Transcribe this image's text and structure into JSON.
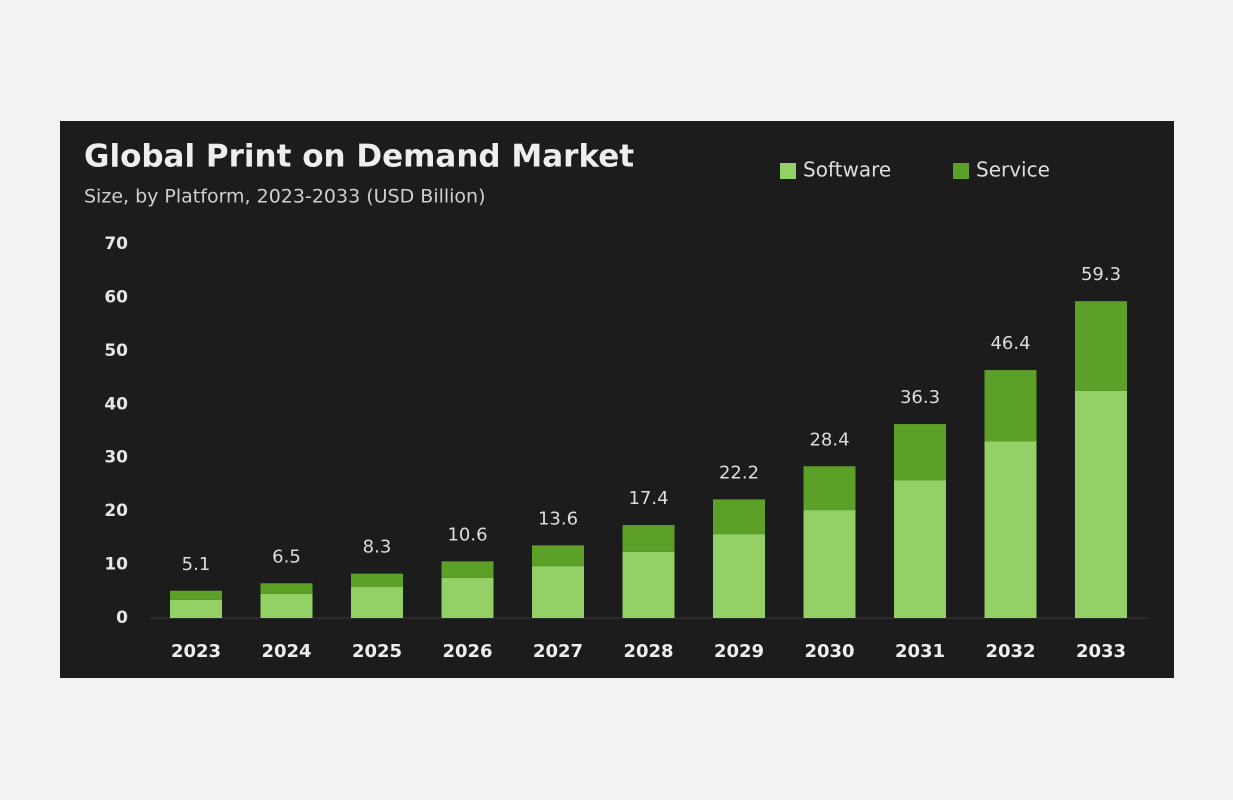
{
  "chart_data": {
    "type": "stacked-bar",
    "title": "Global Print on Demand Market",
    "subtitle": "Size, by Platform, 2023-2033 (USD Billion)",
    "categories": [
      "2023",
      "2024",
      "2025",
      "2026",
      "2027",
      "2028",
      "2029",
      "2030",
      "2031",
      "2032",
      "2033"
    ],
    "series": [
      {
        "name": "Software",
        "color": "#93d065",
        "values": [
          3.4,
          4.5,
          5.8,
          7.5,
          9.7,
          12.4,
          15.7,
          20.2,
          25.8,
          33.1,
          42.5
        ]
      },
      {
        "name": "Service",
        "color": "#5da028",
        "values": [
          1.7,
          2.0,
          2.5,
          3.1,
          3.9,
          5.0,
          6.5,
          8.2,
          10.5,
          13.3,
          16.8
        ]
      }
    ],
    "totals": [
      5.1,
      6.5,
      8.3,
      10.6,
      13.6,
      17.4,
      22.2,
      28.4,
      36.3,
      46.4,
      59.3
    ],
    "ylim": [
      0,
      70
    ],
    "yticks": [
      0,
      10,
      20,
      30,
      40,
      50,
      60,
      70
    ],
    "grid": false
  }
}
